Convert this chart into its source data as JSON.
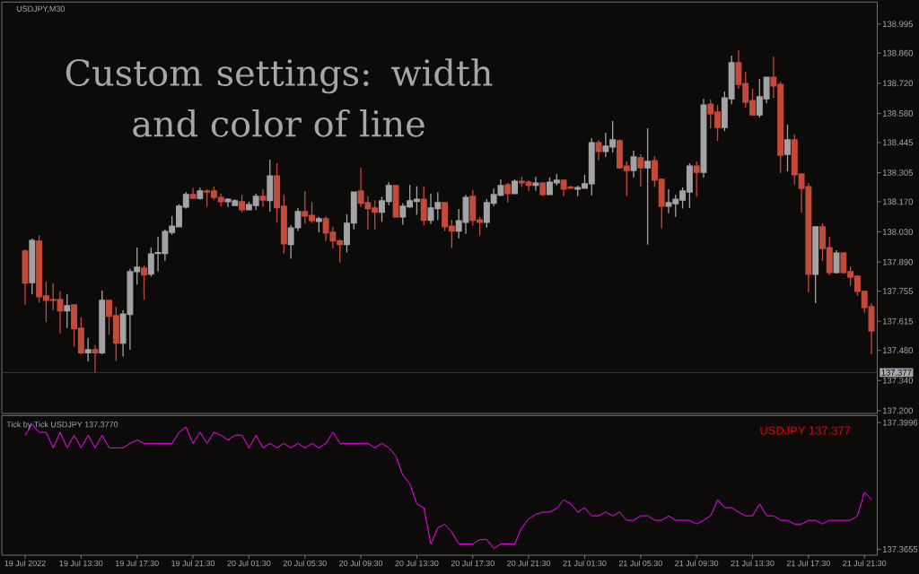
{
  "chart_data": [
    {
      "type": "candlestick",
      "title": "USDJPY,M30",
      "annotations": [
        "Custom settings: width and color of line"
      ],
      "categories": [
        null,
        null,
        null,
        null,
        null,
        null,
        null,
        null,
        null,
        null,
        null,
        null,
        null,
        null,
        null,
        null,
        null,
        null,
        null,
        null,
        null,
        null,
        null,
        null,
        null,
        null,
        null,
        null,
        null,
        null,
        null,
        null,
        null,
        null,
        null,
        null,
        null,
        null,
        null,
        null,
        null,
        null,
        null,
        null,
        null,
        null,
        null,
        null,
        null,
        null,
        null,
        null,
        null,
        null,
        null,
        null,
        null,
        null,
        null,
        null,
        null,
        null,
        null,
        null,
        null,
        null,
        null,
        null,
        null,
        null,
        null,
        null,
        null,
        null,
        null,
        null,
        null,
        null,
        null,
        null,
        null,
        null,
        null,
        null,
        null,
        null,
        null,
        null,
        null,
        null,
        null,
        null,
        null,
        null,
        null,
        null,
        null,
        null,
        null,
        null,
        null,
        null,
        null,
        null,
        null,
        null,
        null,
        null,
        null,
        null,
        null,
        null,
        null,
        null,
        null,
        null,
        null,
        null,
        null,
        null,
        null,
        null
      ],
      "ohlc": [
        [
          137.941,
          137.949,
          137.691,
          137.792
        ],
        [
          137.795,
          137.999,
          137.74,
          137.99
        ],
        [
          137.987,
          138.013,
          137.702,
          137.729
        ],
        [
          137.733,
          137.799,
          137.612,
          137.712
        ],
        [
          137.716,
          137.792,
          137.667,
          137.712
        ],
        [
          137.716,
          137.754,
          137.559,
          137.663
        ],
        [
          137.663,
          137.74,
          137.584,
          137.687
        ],
        [
          137.691,
          137.691,
          137.497,
          137.58
        ],
        [
          137.583,
          137.633,
          137.462,
          137.469
        ],
        [
          137.469,
          137.538,
          137.428,
          137.483
        ],
        [
          137.483,
          137.504,
          137.376,
          137.469
        ],
        [
          137.469,
          137.758,
          137.462,
          137.712
        ],
        [
          137.712,
          137.712,
          137.552,
          137.638
        ],
        [
          137.641,
          137.682,
          137.432,
          137.513
        ],
        [
          137.513,
          137.666,
          137.451,
          137.649
        ],
        [
          137.647,
          137.858,
          137.483,
          137.845
        ],
        [
          137.846,
          137.957,
          137.786,
          137.866
        ],
        [
          137.862,
          137.874,
          137.716,
          137.83
        ],
        [
          137.834,
          137.957,
          137.823,
          137.928
        ],
        [
          137.93,
          138.007,
          137.846,
          137.934
        ],
        [
          137.93,
          138.041,
          137.896,
          138.032
        ],
        [
          138.028,
          138.103,
          138.017,
          138.057
        ],
        [
          138.054,
          138.158,
          138.052,
          138.149
        ],
        [
          138.145,
          138.215,
          138.138,
          138.203
        ],
        [
          138.203,
          138.235,
          138.186,
          138.186
        ],
        [
          138.186,
          138.235,
          138.179,
          138.22
        ],
        [
          138.22,
          138.228,
          138.149,
          138.215
        ],
        [
          138.22,
          138.239,
          138.179,
          138.19
        ],
        [
          138.19,
          138.207,
          138.149,
          138.17
        ],
        [
          138.17,
          138.186,
          138.146,
          138.182
        ],
        [
          138.153,
          138.181,
          138.153,
          138.174
        ],
        [
          138.17,
          138.202,
          138.121,
          138.133
        ],
        [
          138.133,
          138.17,
          138.133,
          138.157
        ],
        [
          138.153,
          138.207,
          138.131,
          138.195
        ],
        [
          138.195,
          138.228,
          138.146,
          138.178
        ],
        [
          138.175,
          138.365,
          138.124,
          138.29
        ],
        [
          138.29,
          138.349,
          138.075,
          138.142
        ],
        [
          138.149,
          138.202,
          137.93,
          137.975
        ],
        [
          137.971,
          138.061,
          137.905,
          138.048
        ],
        [
          138.05,
          138.141,
          138.034,
          138.124
        ],
        [
          138.124,
          138.22,
          138.069,
          138.104
        ],
        [
          138.107,
          138.17,
          138.071,
          138.082
        ],
        [
          138.079,
          138.1,
          138.028,
          138.091
        ],
        [
          138.091,
          138.103,
          137.988,
          138.025
        ],
        [
          138.028,
          138.054,
          137.955,
          137.988
        ],
        [
          137.988,
          137.996,
          137.888,
          137.971
        ],
        [
          137.971,
          138.111,
          137.934,
          138.07
        ],
        [
          138.071,
          138.218,
          138.042,
          138.215
        ],
        [
          138.22,
          138.328,
          138.146,
          138.163
        ],
        [
          138.166,
          138.196,
          138.042,
          138.138
        ],
        [
          138.141,
          138.177,
          138.042,
          138.121
        ],
        [
          138.121,
          138.193,
          138.077,
          138.174
        ],
        [
          138.171,
          138.261,
          138.153,
          138.245
        ],
        [
          138.245,
          138.245,
          138.098,
          138.1
        ],
        [
          138.1,
          138.163,
          138.063,
          138.149
        ],
        [
          138.146,
          138.248,
          138.142,
          138.174
        ],
        [
          138.171,
          138.243,
          138.11,
          138.182
        ],
        [
          138.182,
          138.239,
          138.06,
          138.084
        ],
        [
          138.084,
          138.207,
          138.067,
          138.141
        ],
        [
          138.138,
          138.214,
          138.084,
          138.166
        ],
        [
          138.166,
          138.166,
          138.034,
          138.054
        ],
        [
          138.057,
          138.086,
          137.955,
          138.034
        ],
        [
          138.034,
          138.136,
          138.0,
          138.082
        ],
        [
          138.075,
          138.202,
          138.021,
          138.19
        ],
        [
          138.195,
          138.224,
          138.059,
          138.084
        ],
        [
          138.086,
          138.099,
          138.013,
          138.075
        ],
        [
          138.075,
          138.182,
          138.05,
          138.166
        ],
        [
          138.163,
          138.232,
          138.15,
          138.203
        ],
        [
          138.2,
          138.274,
          138.196,
          138.245
        ],
        [
          138.249,
          138.257,
          138.167,
          138.208
        ],
        [
          138.208,
          138.274,
          138.208,
          138.265
        ],
        [
          138.265,
          138.286,
          138.238,
          138.258
        ],
        [
          138.261,
          138.27,
          138.221,
          138.246
        ],
        [
          138.246,
          138.286,
          138.221,
          138.257
        ],
        [
          138.257,
          138.261,
          138.196,
          138.204
        ],
        [
          138.204,
          138.282,
          138.204,
          138.261
        ],
        [
          138.258,
          138.299,
          138.246,
          138.27
        ],
        [
          138.27,
          138.274,
          138.196,
          138.229
        ],
        [
          138.238,
          138.245,
          138.229,
          138.233
        ],
        [
          138.229,
          138.245,
          138.196,
          138.236
        ],
        [
          138.233,
          138.295,
          138.233,
          138.253
        ],
        [
          138.254,
          138.465,
          138.2,
          138.444
        ],
        [
          138.444,
          138.456,
          138.362,
          138.403
        ],
        [
          138.403,
          138.49,
          138.378,
          138.428
        ],
        [
          138.424,
          138.544,
          138.399,
          138.457
        ],
        [
          138.453,
          138.46,
          138.324,
          138.328
        ],
        [
          138.336,
          138.357,
          138.196,
          138.315
        ],
        [
          138.315,
          138.407,
          138.282,
          138.378
        ],
        [
          138.374,
          138.39,
          138.24,
          138.328
        ],
        [
          138.328,
          138.511,
          137.971,
          138.357
        ],
        [
          138.361,
          138.382,
          138.238,
          138.27
        ],
        [
          138.274,
          138.278,
          138.046,
          138.149
        ],
        [
          138.149,
          138.228,
          138.117,
          138.166
        ],
        [
          138.161,
          138.203,
          138.1,
          138.182
        ],
        [
          138.178,
          138.236,
          138.138,
          138.22
        ],
        [
          138.215,
          138.349,
          138.141,
          138.336
        ],
        [
          138.336,
          138.357,
          138.195,
          138.307
        ],
        [
          138.307,
          138.648,
          138.282,
          138.619
        ],
        [
          138.623,
          138.644,
          138.511,
          138.578
        ],
        [
          138.586,
          138.619,
          138.453,
          138.515
        ],
        [
          138.515,
          138.682,
          138.498,
          138.652
        ],
        [
          138.648,
          138.848,
          138.623,
          138.815
        ],
        [
          138.815,
          138.873,
          138.694,
          138.715
        ],
        [
          138.719,
          138.773,
          138.607,
          138.632
        ],
        [
          138.64,
          138.694,
          138.573,
          138.573
        ],
        [
          138.573,
          138.74,
          138.561,
          138.657
        ],
        [
          138.648,
          138.748,
          138.627,
          138.748
        ],
        [
          138.748,
          138.844,
          138.652,
          138.707
        ],
        [
          138.715,
          138.727,
          138.303,
          138.386
        ],
        [
          138.39,
          138.528,
          138.311,
          138.457
        ],
        [
          138.457,
          138.482,
          138.249,
          138.295
        ],
        [
          138.299,
          138.299,
          138.12,
          138.232
        ],
        [
          138.24,
          138.257,
          137.749,
          137.833
        ],
        [
          137.833,
          138.053,
          137.699,
          138.053
        ],
        [
          138.053,
          138.07,
          137.895,
          137.953
        ],
        [
          137.957,
          138.007,
          137.828,
          137.841
        ],
        [
          137.841,
          137.945,
          137.837,
          137.932
        ],
        [
          137.932,
          137.937,
          137.837,
          137.841
        ],
        [
          137.845,
          137.87,
          137.778,
          137.82
        ],
        [
          137.824,
          137.828,
          137.733,
          137.754
        ],
        [
          137.754,
          137.754,
          137.654,
          137.679
        ],
        [
          137.683,
          137.699,
          137.462,
          137.57
        ]
      ],
      "colors": [
        "#c44a3a",
        "#a3a3a5",
        "#c44a3a",
        "#c44a3a",
        "#c44a3a",
        "#c44a3a",
        "#a3a3a5",
        "#c44a3a",
        "#c44a3a",
        "#a3a3a5",
        "#c44a3a",
        "#a3a3a5",
        "#c44a3a",
        "#c44a3a",
        "#a3a3a5",
        "#a3a3a5",
        "#a3a3a5",
        "#c44a3a",
        "#a3a3a5",
        "#a3a3a5",
        "#a3a3a5",
        "#a3a3a5",
        "#a3a3a5",
        "#a3a3a5",
        "#c44a3a",
        "#a3a3a5",
        "#c44a3a",
        "#c44a3a",
        "#c44a3a",
        "#a3a3a5",
        "#a3a3a5",
        "#c44a3a",
        "#a3a3a5",
        "#a3a3a5",
        "#c44a3a",
        "#a3a3a5",
        "#c44a3a",
        "#c44a3a",
        "#a3a3a5",
        "#a3a3a5",
        "#c44a3a",
        "#c44a3a",
        "#a3a3a5",
        "#c44a3a",
        "#c44a3a",
        "#c44a3a",
        "#a3a3a5",
        "#a3a3a5",
        "#c44a3a",
        "#c44a3a",
        "#c44a3a",
        "#a3a3a5",
        "#a3a3a5",
        "#c44a3a",
        "#a3a3a5",
        "#a3a3a5",
        "#a3a3a5",
        "#c44a3a",
        "#a3a3a5",
        "#a3a3a5",
        "#c44a3a",
        "#c44a3a",
        "#a3a3a5",
        "#a3a3a5",
        "#c44a3a",
        "#c44a3a",
        "#a3a3a5",
        "#a3a3a5",
        "#a3a3a5",
        "#c44a3a",
        "#a3a3a5",
        "#c44a3a",
        "#c44a3a",
        "#a3a3a5",
        "#c44a3a",
        "#a3a3a5",
        "#a3a3a5",
        "#c44a3a",
        "#c44a3a",
        "#a3a3a5",
        "#a3a3a5",
        "#a3a3a5",
        "#c44a3a",
        "#a3a3a5",
        "#a3a3a5",
        "#c44a3a",
        "#c44a3a",
        "#a3a3a5",
        "#c44a3a",
        "#a3a3a5",
        "#c44a3a",
        "#c44a3a",
        "#a3a3a5",
        "#a3a3a5",
        "#a3a3a5",
        "#a3a3a5",
        "#c44a3a",
        "#a3a3a5",
        "#c44a3a",
        "#c44a3a",
        "#a3a3a5",
        "#a3a3a5",
        "#c44a3a",
        "#c44a3a",
        "#c44a3a",
        "#a3a3a5",
        "#a3a3a5",
        "#c44a3a",
        "#c44a3a",
        "#a3a3a5",
        "#c44a3a",
        "#c44a3a",
        "#c44a3a",
        "#a3a3a5",
        "#c44a3a",
        "#c44a3a",
        "#a3a3a5",
        "#c44a3a",
        "#c44a3a",
        "#c44a3a",
        "#c44a3a",
        "#c44a3a"
      ],
      "ylim": [
        137.187,
        139.097
      ],
      "yticks": [
        {
          "value": 137.2,
          "label": "137.200"
        },
        {
          "value": 137.34,
          "label": "137.340"
        },
        {
          "value": 137.48,
          "label": "137.480"
        },
        137.615,
        137.755,
        {
          "value": 137.89,
          "label": "137.890"
        },
        {
          "value": 138.03,
          "label": "138.030"
        },
        {
          "value": 138.17,
          "label": "138.170"
        },
        138.305,
        138.445,
        {
          "value": 138.58,
          "label": "138.580"
        },
        {
          "value": 138.72,
          "label": "138.720"
        },
        {
          "value": 138.86,
          "label": "138.860"
        },
        138.995
      ],
      "ref_lines": [
        {
          "axis": "y",
          "value": 137.377,
          "label": "137.377",
          "color": "#3b3f6e"
        }
      ]
    },
    {
      "type": "line",
      "title": "Tick by Tick USDJPY 137.3770",
      "annotations": [
        "USDJPY 137.377"
      ],
      "categories": [
        "19 Jul 2022",
        null,
        null,
        null,
        null,
        null,
        null,
        null,
        "19 Jul 13:30",
        null,
        null,
        null,
        null,
        null,
        null,
        null,
        "19 Jul 17:30",
        null,
        null,
        null,
        null,
        null,
        null,
        null,
        "19 Jul 21:30",
        null,
        null,
        null,
        null,
        null,
        null,
        null,
        "20 Jul 01:30",
        null,
        null,
        null,
        null,
        null,
        null,
        null,
        "20 Jul 05:30",
        null,
        null,
        null,
        null,
        null,
        null,
        null,
        "20 Jul 09:30",
        null,
        null,
        null,
        null,
        null,
        null,
        null,
        "20 Jul 13:30",
        null,
        null,
        null,
        null,
        null,
        null,
        null,
        "20 Jul 17:30",
        null,
        null,
        null,
        null,
        null,
        null,
        null,
        "20 Jul 21:30",
        null,
        null,
        null,
        null,
        null,
        null,
        null,
        "21 Jul 01:30",
        null,
        null,
        null,
        null,
        null,
        null,
        null,
        "21 Jul 05:30",
        null,
        null,
        null,
        null,
        null,
        null,
        null,
        "21 Jul 09:30",
        null,
        null,
        null,
        null,
        null,
        null,
        null,
        "21 Jul 13:30",
        null,
        null,
        null,
        null,
        null,
        null,
        null,
        "21 Jul 17:30",
        null,
        null,
        null,
        null,
        null,
        null,
        null,
        "21 Jul 21:30",
        null
      ],
      "values": [
        137.3962,
        137.3992,
        137.397,
        137.397,
        137.3928,
        137.397,
        137.3928,
        137.3962,
        137.3928,
        137.3962,
        137.3928,
        137.3962,
        137.3928,
        137.3928,
        137.3928,
        137.394,
        137.3949,
        137.394,
        137.394,
        137.394,
        137.394,
        137.394,
        137.397,
        137.3984,
        137.394,
        137.397,
        137.394,
        137.397,
        137.3962,
        137.3949,
        137.3962,
        137.3962,
        137.3928,
        137.3962,
        137.3928,
        137.394,
        137.3928,
        137.394,
        137.3928,
        137.394,
        137.3928,
        137.394,
        137.3928,
        137.394,
        137.397,
        137.394,
        137.394,
        137.394,
        137.394,
        137.394,
        137.3928,
        137.394,
        137.3928,
        137.3906,
        137.3854,
        137.3831,
        137.3777,
        137.3767,
        137.3669,
        137.3713,
        137.3722,
        137.3701,
        137.3669,
        137.3669,
        137.3669,
        137.3681,
        137.3681,
        137.3657,
        137.3669,
        137.3669,
        137.3669,
        137.3713,
        137.3737,
        137.3749,
        137.3755,
        137.3755,
        137.3765,
        137.3788,
        137.3777,
        137.3755,
        137.3767,
        137.3745,
        137.3745,
        137.3755,
        137.3745,
        137.3755,
        137.3733,
        137.3733,
        137.3745,
        137.3745,
        137.3733,
        137.3733,
        137.3745,
        137.3733,
        137.3733,
        137.3733,
        137.3723,
        137.3733,
        137.3745,
        137.3788,
        137.3767,
        137.3767,
        137.3755,
        137.3745,
        137.3745,
        137.3777,
        137.3745,
        137.3745,
        137.3733,
        137.3733,
        137.3723,
        137.3723,
        137.3733,
        137.3733,
        137.3723,
        137.3733,
        137.3733,
        137.3733,
        137.3733,
        137.3745,
        137.3809,
        137.3789
      ],
      "color": "#ff00ff",
      "ylim": [
        137.3639,
        137.4015
      ],
      "yticks": [
        137.3655,
        137.3996
      ]
    }
  ]
}
